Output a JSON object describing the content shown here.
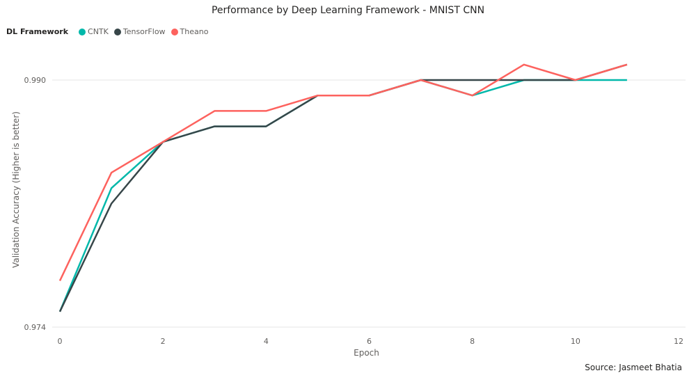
{
  "chart_data": {
    "type": "line",
    "title": "Performance by Deep Learning Framework - MNIST CNN",
    "legend_title": "DL Framework",
    "legend_position": "top-left",
    "xlabel": "Epoch",
    "ylabel": "Validation Accuracy (Higher is better)",
    "xlim": [
      0,
      12
    ],
    "ylim": [
      0.974,
      0.991
    ],
    "x_ticks": [
      "0",
      "2",
      "4",
      "6",
      "8",
      "10",
      "12"
    ],
    "y_ticks": [
      "0.974",
      "0.990"
    ],
    "grid": true,
    "x": [
      0,
      1,
      2,
      3,
      4,
      5,
      6,
      7,
      8,
      9,
      10,
      11
    ],
    "series": [
      {
        "name": "CNTK",
        "color": "#01B8AA",
        "values": [
          0.975,
          0.983,
          0.986,
          0.987,
          0.987,
          0.989,
          0.989,
          0.99,
          0.989,
          0.99,
          0.99,
          0.99
        ]
      },
      {
        "name": "TensorFlow",
        "color": "#374649",
        "values": [
          0.975,
          0.982,
          0.986,
          0.987,
          0.987,
          0.989,
          0.989,
          0.99,
          0.99,
          0.99,
          0.99,
          0.991
        ]
      },
      {
        "name": "Theano",
        "color": "#FD625E",
        "values": [
          0.977,
          0.984,
          0.986,
          0.988,
          0.988,
          0.989,
          0.989,
          0.99,
          0.989,
          0.991,
          0.99,
          0.991
        ]
      }
    ],
    "source": "Source: Jasmeet Bhatia"
  }
}
